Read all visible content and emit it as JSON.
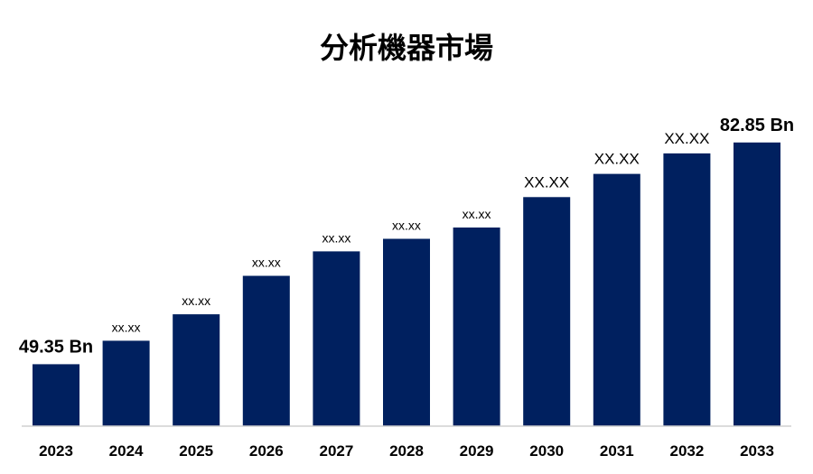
{
  "chart_data": {
    "type": "bar",
    "title": "分析機器市場",
    "xlabel": "",
    "ylabel": "",
    "categories": [
      "2023",
      "2024",
      "2025",
      "2026",
      "2027",
      "2028",
      "2029",
      "2030",
      "2031",
      "2032",
      "2033"
    ],
    "values": [
      49.35,
      52.9,
      56.9,
      62.7,
      66.4,
      68.3,
      70.0,
      74.6,
      78.1,
      81.2,
      82.85
    ],
    "data_labels": [
      "49.35 Bn",
      "xx.xx",
      "xx.xx",
      "xx.xx",
      "xx.xx",
      "xx.xx",
      "xx.xx",
      "XX.XX",
      "XX.XX",
      "XX.XX",
      "82.85 Bn"
    ],
    "ylim": [
      40,
      88
    ],
    "grid": false,
    "legend": "none",
    "bar_color": "#00205f"
  }
}
